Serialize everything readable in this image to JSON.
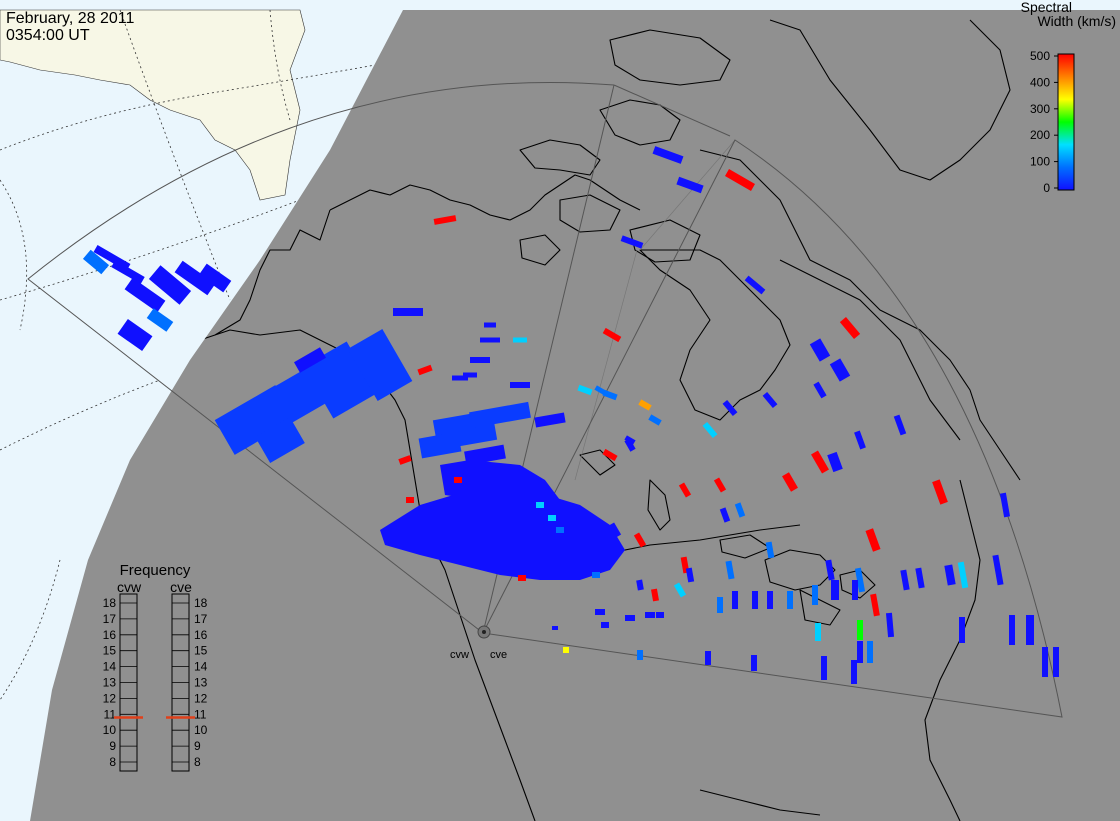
{
  "header": {
    "date": "February, 28 2011",
    "time": "0354:00 UT"
  },
  "colors": {
    "land_dayside": "#f7f7e6",
    "ocean_dayside": "#eaf6fd",
    "nightside": "#909090",
    "coastline": "#000000",
    "fov_outline": "#555555",
    "frequency_marker": "#e0401a"
  },
  "colorbar": {
    "title_line1": "Spectral",
    "title_line2": "Width (km/s)",
    "ticks": [
      "500",
      "400",
      "300",
      "200",
      "100",
      "0"
    ],
    "min": 0,
    "max": 500,
    "colormap": [
      "#1010ff",
      "#0070ff",
      "#00e0ff",
      "#00ff00",
      "#ffff00",
      "#ff8000",
      "#ff0000"
    ]
  },
  "radars": [
    {
      "label": "cvw",
      "frequency_mhz": 10.8
    },
    {
      "label": "cve",
      "frequency_mhz": 10.8
    }
  ],
  "frequency_panel": {
    "title": "Frequency",
    "gauges": [
      {
        "label": "cvw",
        "ticks": [
          "18",
          "17",
          "16",
          "15",
          "14",
          "13",
          "12",
          "11",
          "10",
          "9",
          "8"
        ],
        "value_mhz": 10.8
      },
      {
        "label": "cve",
        "ticks": [
          "18",
          "17",
          "16",
          "15",
          "14",
          "13",
          "12",
          "11",
          "10",
          "9",
          "8"
        ],
        "value_mhz": 10.8
      }
    ],
    "range": [
      8,
      18
    ]
  },
  "chart_data": {
    "type": "radar scatter map",
    "parameter": "Spectral Width",
    "units": "km/s",
    "color_range": [
      0,
      500
    ]
  }
}
